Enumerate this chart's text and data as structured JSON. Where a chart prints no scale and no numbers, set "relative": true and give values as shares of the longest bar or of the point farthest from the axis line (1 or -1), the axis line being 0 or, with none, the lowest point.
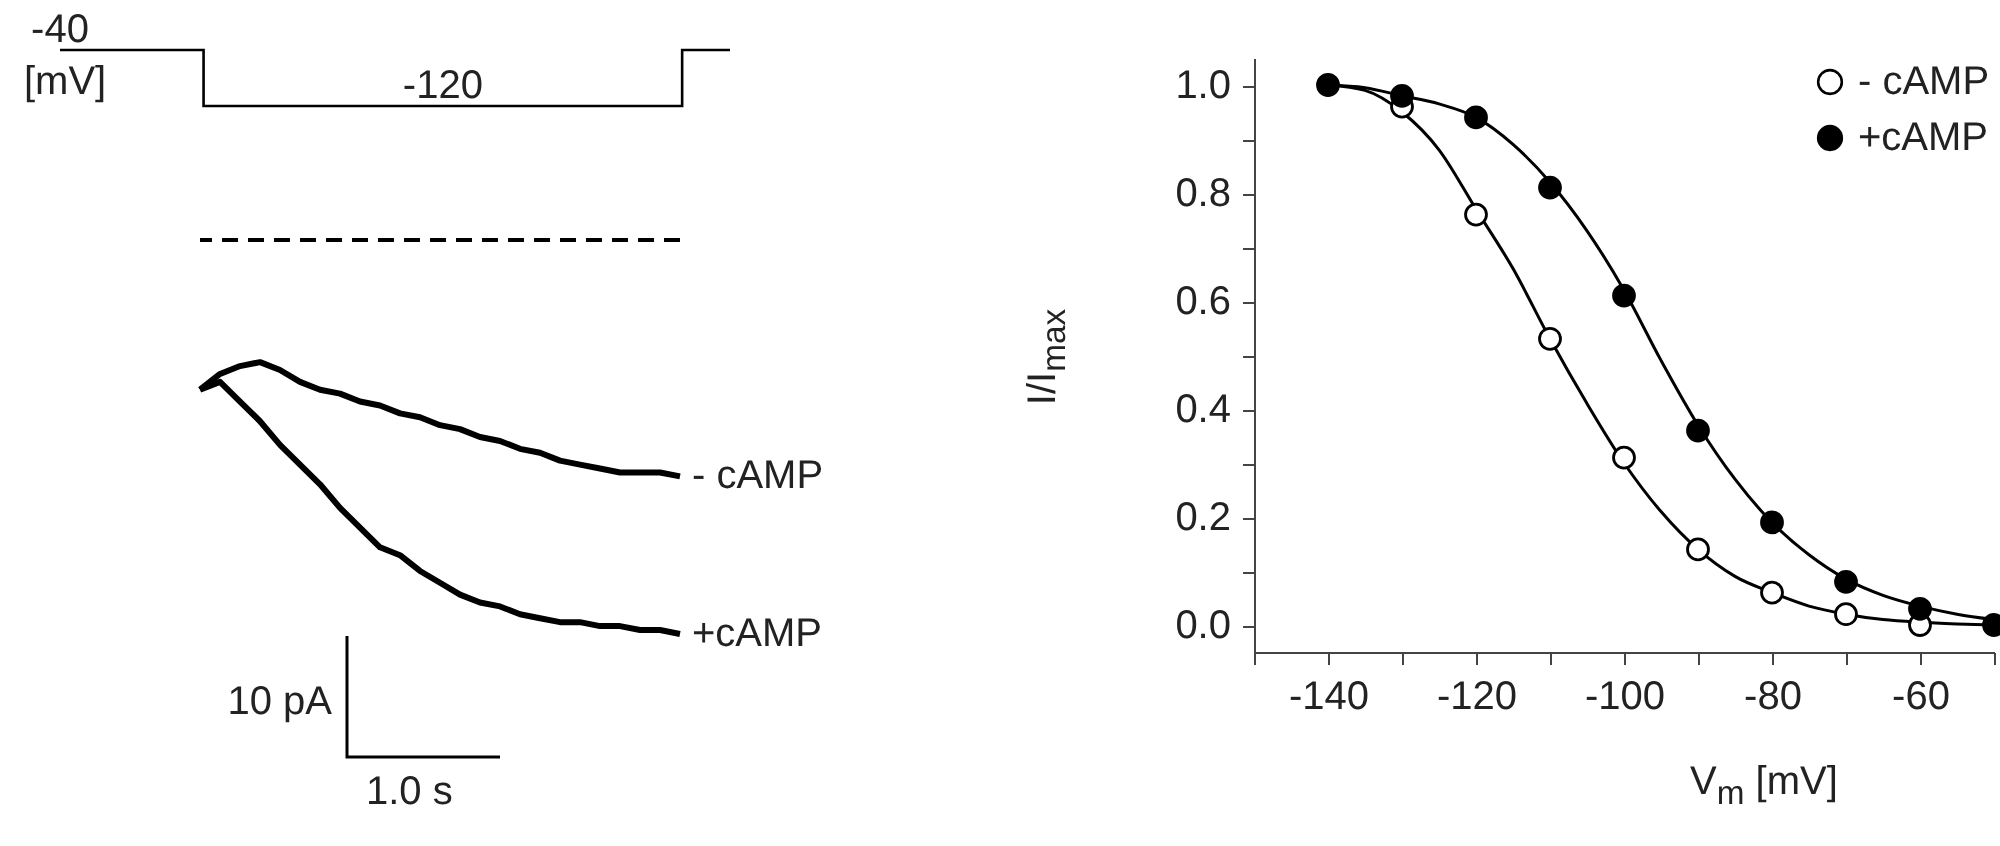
{
  "chart_data": [
    {
      "type": "step",
      "categories": [
        null,
        null,
        null,
        null,
        null,
        null,
        null,
        null,
        null,
        null,
        null,
        null,
        null,
        null,
        null
      ],
      "values": [
        -40,
        -40,
        -40,
        -120,
        -120,
        -120,
        -120,
        -120,
        -120,
        -120,
        -120,
        -120,
        -120,
        -40,
        -40
      ],
      "value_labels": [
        "-40",
        null,
        null,
        null,
        null,
        null,
        null,
        null,
        "-120",
        null,
        null,
        null,
        null,
        null,
        null
      ],
      "color": "#000000",
      "annotations": [
        "[mV]"
      ],
      "tick_labels": false
    },
    {
      "type": "line",
      "relative": true,
      "categories": [
        null,
        null,
        null,
        null,
        null,
        null,
        null,
        null,
        null,
        null,
        null,
        null,
        null,
        null,
        null,
        null,
        null,
        null,
        null,
        null,
        null,
        null,
        null,
        null,
        null
      ],
      "series": [
        {
          "name": "- cAMP",
          "color": "#000000",
          "values": [
            -0.38,
            -0.34,
            -0.32,
            -0.31,
            -0.33,
            -0.36,
            -0.38,
            -0.39,
            -0.41,
            -0.42,
            -0.44,
            -0.45,
            -0.47,
            -0.48,
            -0.5,
            -0.51,
            -0.53,
            -0.54,
            -0.56,
            -0.57,
            -0.58,
            -0.59,
            -0.59,
            -0.59,
            -0.6
          ]
        },
        {
          "name": "+cAMP",
          "color": "#000000",
          "values": [
            -0.38,
            -0.36,
            -0.41,
            -0.46,
            -0.52,
            -0.57,
            -0.62,
            -0.68,
            -0.73,
            -0.78,
            -0.8,
            -0.84,
            -0.87,
            -0.9,
            -0.92,
            -0.93,
            -0.95,
            -0.96,
            -0.97,
            -0.97,
            -0.98,
            -0.98,
            -0.99,
            -0.99,
            -1
          ]
        }
      ],
      "ref_lines": [
        {
          "axis": "y",
          "value": 0,
          "line_style": "dashed",
          "color": "#000000"
        }
      ],
      "annotations": [
        "10 pA",
        "1.0 s"
      ],
      "tick_labels": false
    },
    {
      "type": "scatter",
      "xlabel": "V$_{m}$ [mV]",
      "ylabel": "I/I$_{max}$",
      "x": [
        -140,
        -130,
        -120,
        -110,
        -100,
        -90,
        -80,
        -70,
        -60,
        -50
      ],
      "xlim": [
        -150,
        -50
      ],
      "ylim": [
        -0.05,
        1.05
      ],
      "xticks": [
        {
          "value": -150,
          "label": null
        },
        -140,
        {
          "value": -130,
          "label": null
        },
        -120,
        {
          "value": -110,
          "label": null
        },
        -100,
        {
          "value": -90,
          "label": null
        },
        -80,
        {
          "value": -70,
          "label": null
        },
        -60,
        {
          "value": -50,
          "label": null
        }
      ],
      "yticks": [
        {
          "value": 0,
          "label": "0.0"
        },
        {
          "value": 0.1,
          "label": null
        },
        0.2,
        {
          "value": 0.3,
          "label": null
        },
        0.4,
        {
          "value": 0.5,
          "label": null
        },
        0.6,
        {
          "value": 0.7,
          "label": null
        },
        0.8,
        {
          "value": 0.9,
          "label": null
        },
        {
          "value": 1,
          "label": "1.0"
        }
      ],
      "legend": "top right",
      "marker": "circle",
      "grid": false,
      "series": [
        {
          "name": "- cAMP",
          "color": "#ffffff",
          "values": [
            null,
            0.96,
            0.76,
            0.53,
            0.31,
            0.14,
            0.06,
            0.02,
            0.0,
            null
          ]
        },
        {
          "name": "+cAMP",
          "color": "#000000",
          "values": [
            1.0,
            0.98,
            0.94,
            0.81,
            0.61,
            0.36,
            0.19,
            0.08,
            0.03,
            0.0
          ]
        },
        {
          "type": "line",
          "marker": "none",
          "color": "#000000",
          "x": [
            -140,
            -135,
            -130,
            -125,
            -120,
            -115,
            -110,
            -105,
            -100,
            -95,
            -90,
            -85,
            -80,
            -75,
            -70,
            -65,
            -60,
            -55,
            -50
          ],
          "values": [
            1.0,
            0.99,
            0.95,
            0.88,
            0.77,
            0.66,
            0.53,
            0.41,
            0.3,
            0.21,
            0.14,
            0.09,
            0.06,
            0.035,
            0.02,
            0.01,
            0.005,
            0.002,
            0.0
          ]
        },
        {
          "type": "line",
          "marker": "none",
          "color": "#000000",
          "x": [
            -140,
            -135,
            -130,
            -125,
            -120,
            -115,
            -110,
            -105,
            -100,
            -95,
            -90,
            -85,
            -80,
            -75,
            -70,
            -65,
            -60,
            -55,
            -50
          ],
          "values": [
            1.0,
            0.995,
            0.98,
            0.965,
            0.94,
            0.89,
            0.82,
            0.73,
            0.62,
            0.49,
            0.37,
            0.27,
            0.19,
            0.13,
            0.085,
            0.055,
            0.035,
            0.02,
            0.01
          ]
        }
      ]
    }
  ]
}
